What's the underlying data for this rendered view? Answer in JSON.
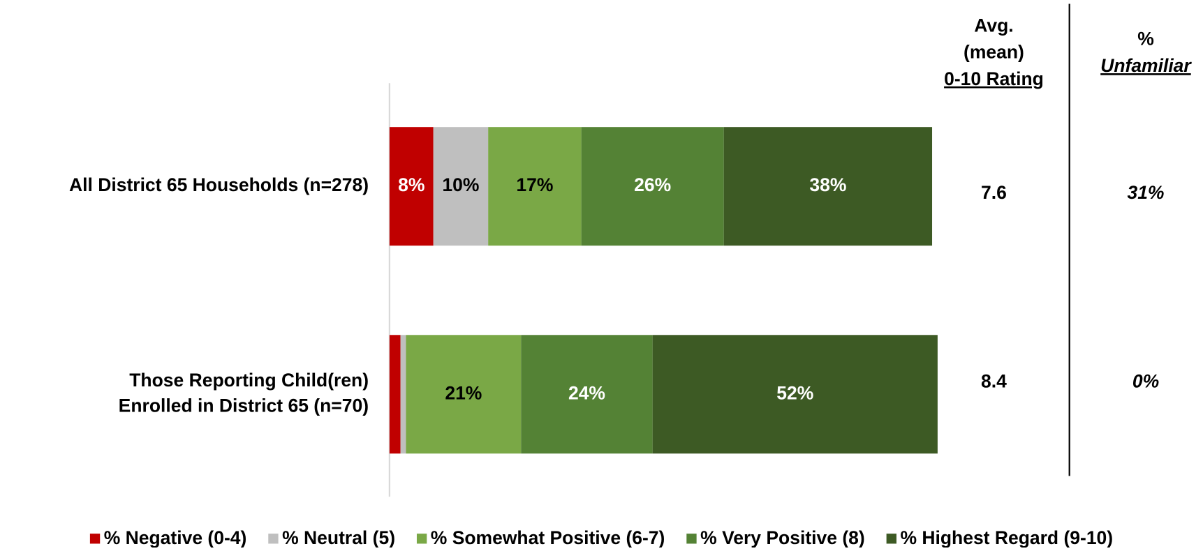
{
  "chart_data": {
    "type": "stacked_bar_horizontal",
    "categories": [
      [
        "All District 65 Households (n=278)"
      ],
      [
        "Those Reporting Child(ren)",
        "Enrolled in District 65 (n=70)"
      ]
    ],
    "xlim": [
      0,
      100
    ],
    "series": [
      {
        "name": "% Negative (0-4)",
        "color": "#c00000",
        "values": [
          8,
          2
        ],
        "value_labels": [
          "8%",
          null
        ]
      },
      {
        "name": "% Neutral (5)",
        "color": "#bfbfbf",
        "values": [
          10,
          1
        ],
        "value_labels": [
          "10%",
          null
        ]
      },
      {
        "name": "% Somewhat Positive (6-7)",
        "color": "#7aa846",
        "values": [
          17,
          21
        ],
        "value_labels": [
          "17%",
          "21%"
        ]
      },
      {
        "name": "% Very Positive (8)",
        "color": "#548235",
        "values": [
          26,
          24
        ],
        "value_labels": [
          "26%",
          "24%"
        ]
      },
      {
        "name": "% Highest Regard (9-10)",
        "color": "#3d5a24",
        "values": [
          38,
          52
        ],
        "value_labels": [
          "38%",
          "52%"
        ]
      }
    ],
    "avg_rating": {
      "title_lines": [
        "Avg.",
        "(mean)",
        "0-10 Rating"
      ],
      "values": [
        7.6,
        8.4
      ]
    },
    "unfamiliar": {
      "title_lines": [
        "%",
        "Unfamiliar"
      ],
      "values": [
        31,
        0
      ],
      "value_labels": [
        "31%",
        "0%"
      ]
    },
    "legend": "bottom"
  }
}
